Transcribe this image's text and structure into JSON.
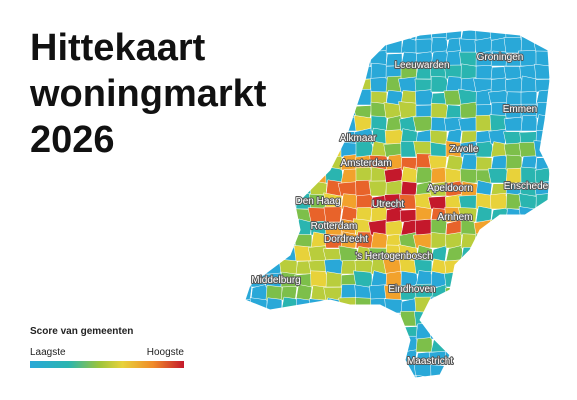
{
  "header": {
    "title_lines": [
      "Hittekaart",
      "woningmarkt",
      "2026"
    ]
  },
  "legend": {
    "title": "Score van gemeenten",
    "low": "Laagste",
    "high": "Hoogste"
  },
  "cities": [
    {
      "label": "Leeuwarden"
    },
    {
      "label": "Groningen"
    },
    {
      "label": "Emmen"
    },
    {
      "label": "Alkmaar"
    },
    {
      "label": "Zwolle"
    },
    {
      "label": "Amsterdam"
    },
    {
      "label": "Apeldoorn"
    },
    {
      "label": "Enschede"
    },
    {
      "label": "Den Haag"
    },
    {
      "label": "Utrecht"
    },
    {
      "label": "Arnhem"
    },
    {
      "label": "Rotterdam"
    },
    {
      "label": "Dordrecht"
    },
    {
      "label": "'s Hertogenbosch"
    },
    {
      "label": "Middelburg"
    },
    {
      "label": "Eindhoven"
    },
    {
      "label": "Maastricht"
    }
  ]
}
